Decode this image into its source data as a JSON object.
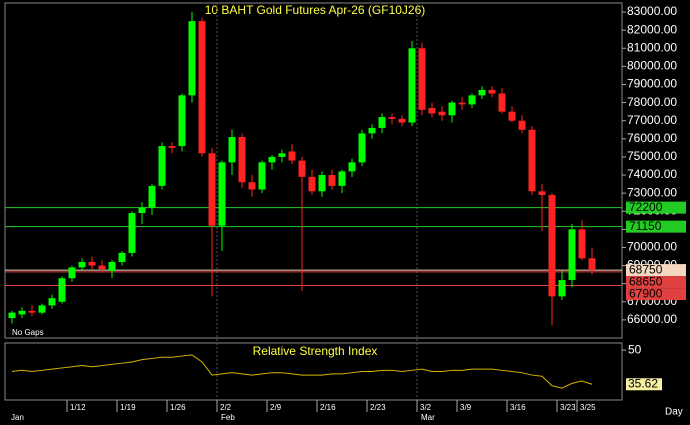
{
  "chart_data": {
    "type": "candlestick",
    "title": "10  BAHT  Gold  Futures  Apr-26  (GF10J26)",
    "note": "No Gaps",
    "period": "Day",
    "categories": [
      null,
      null,
      null,
      null,
      null,
      null,
      "1/12",
      null,
      null,
      null,
      null,
      "1/19",
      null,
      null,
      null,
      null,
      "1/26",
      null,
      null,
      null,
      null,
      "2/2",
      null,
      null,
      null,
      null,
      "2/9",
      null,
      null,
      null,
      null,
      "2/16",
      null,
      null,
      null,
      null,
      "2/23",
      null,
      null,
      null,
      null,
      "3/2",
      null,
      null,
      null,
      "3/9",
      null,
      null,
      null,
      null,
      "3/16",
      null,
      null,
      null,
      null,
      "3/23",
      null,
      "3/25",
      null
    ],
    "months": [
      {
        "name": "Jan",
        "start": 0
      },
      {
        "name": "Feb",
        "start": 21
      },
      {
        "name": "Mar",
        "start": 41
      }
    ],
    "open": [
      66100,
      66300,
      66500,
      66400,
      66800,
      67000,
      68300,
      68900,
      69200,
      69000,
      68700,
      69200,
      69700,
      71900,
      72200,
      73400,
      75600,
      75600,
      78400,
      82500,
      75200,
      71200,
      74700,
      76100,
      73600,
      73200,
      74700,
      75000,
      75300,
      74800,
      73900,
      73100,
      74000,
      73400,
      74200,
      74700,
      76300,
      76600,
      77200,
      77100,
      76900,
      81000,
      77700,
      77500,
      77300,
      78000,
      77900,
      78400,
      78700,
      78500,
      77500,
      77000,
      76500,
      73100,
      72900,
      67300,
      68200,
      71000,
      69400
    ],
    "high": [
      66500,
      66700,
      66800,
      66900,
      67400,
      68400,
      69000,
      69400,
      69500,
      69300,
      69300,
      69800,
      72000,
      72500,
      73500,
      75800,
      75800,
      78500,
      83000,
      82700,
      75500,
      74800,
      76500,
      76300,
      74000,
      74800,
      75100,
      75400,
      75700,
      75000,
      74300,
      74200,
      74300,
      74300,
      74900,
      76500,
      76800,
      77400,
      77400,
      77300,
      81400,
      81300,
      78000,
      77800,
      78100,
      78300,
      78500,
      78900,
      78900,
      78800,
      77800,
      77300,
      76700,
      73500,
      73000,
      68700,
      71300,
      71500,
      70000
    ],
    "low": [
      65800,
      66100,
      66200,
      66300,
      66600,
      66900,
      68100,
      68700,
      68800,
      68600,
      68300,
      69000,
      69500,
      71300,
      71800,
      73200,
      75200,
      75300,
      78000,
      75000,
      67300,
      69800,
      74000,
      73300,
      72800,
      73000,
      74300,
      74700,
      74600,
      67600,
      72900,
      72800,
      73200,
      73000,
      73900,
      74500,
      76000,
      76300,
      76800,
      76700,
      76700,
      77300,
      77200,
      77000,
      76900,
      77600,
      77700,
      78200,
      78300,
      77400,
      76900,
      76300,
      72900,
      70900,
      65700,
      67100,
      67800,
      69300,
      68500
    ],
    "close": [
      66400,
      66500,
      66400,
      66800,
      67200,
      68300,
      68900,
      69200,
      69000,
      68800,
      69200,
      69700,
      71900,
      72200,
      73400,
      75600,
      75500,
      78400,
      82500,
      75200,
      71200,
      74700,
      76100,
      73600,
      73200,
      74700,
      75000,
      75200,
      74800,
      73900,
      73100,
      74000,
      73400,
      74200,
      74700,
      76300,
      76600,
      77200,
      77100,
      76900,
      81000,
      77600,
      77400,
      77300,
      78000,
      77900,
      78400,
      78700,
      78500,
      77500,
      77000,
      76500,
      73100,
      72900,
      67300,
      68200,
      71000,
      69400,
      68750
    ],
    "up_color": "#00ff00",
    "down_color": "#ff2424",
    "ylim": [
      65000,
      83500
    ],
    "yticks": [
      {
        "value": 66000,
        "label": "66000.00"
      },
      {
        "value": 67000,
        "label": "67000.00"
      },
      {
        "value": 68000,
        "label": "68000.00"
      },
      {
        "value": 69000,
        "label": "69000.00"
      },
      {
        "value": 70000,
        "label": "70000.00"
      },
      {
        "value": 71000,
        "label": "71000.00"
      },
      {
        "value": 72000,
        "label": "72000.00"
      },
      {
        "value": 73000,
        "label": "73000.00"
      },
      {
        "value": 74000,
        "label": "74000.00"
      },
      {
        "value": 75000,
        "label": "75000.00"
      },
      {
        "value": 76000,
        "label": "76000.00"
      },
      {
        "value": 77000,
        "label": "77000.00"
      },
      {
        "value": 78000,
        "label": "78000.00"
      },
      {
        "value": 79000,
        "label": "79000.00"
      },
      {
        "value": 80000,
        "label": "80000.00"
      },
      {
        "value": 81000,
        "label": "81000.00"
      },
      {
        "value": 82000,
        "label": "82000.00"
      },
      {
        "value": 83000,
        "label": "83000.00"
      }
    ],
    "levels": [
      {
        "value": 72200,
        "color": "#22cc22"
      },
      {
        "value": 71150,
        "color": "#22cc22"
      },
      {
        "value": 68750,
        "color": "#f4d8c0"
      },
      {
        "value": 68650,
        "color": "#e04040"
      },
      {
        "value": 67900,
        "color": "#e04040"
      }
    ],
    "rsi": {
      "name": "Relative Strength Index",
      "color": "#d8b400",
      "values": [
        41,
        41.5,
        41,
        41.5,
        42,
        42.5,
        43,
        43.5,
        43,
        43.5,
        44,
        44.5,
        45,
        46,
        46.5,
        47,
        47,
        47.5,
        48,
        45,
        39.5,
        40,
        40.5,
        40,
        39.5,
        40,
        40.5,
        40.5,
        40,
        39.5,
        39.5,
        39.5,
        40,
        40,
        40.5,
        41,
        41,
        41.5,
        41.5,
        41,
        41.5,
        42,
        41,
        41,
        41.5,
        41.5,
        42,
        42,
        42,
        41.5,
        41,
        40.5,
        39.5,
        39,
        35,
        34,
        36,
        37,
        35.62
      ],
      "ylim": [
        29,
        53
      ],
      "yticks": [
        50
      ]
    }
  }
}
